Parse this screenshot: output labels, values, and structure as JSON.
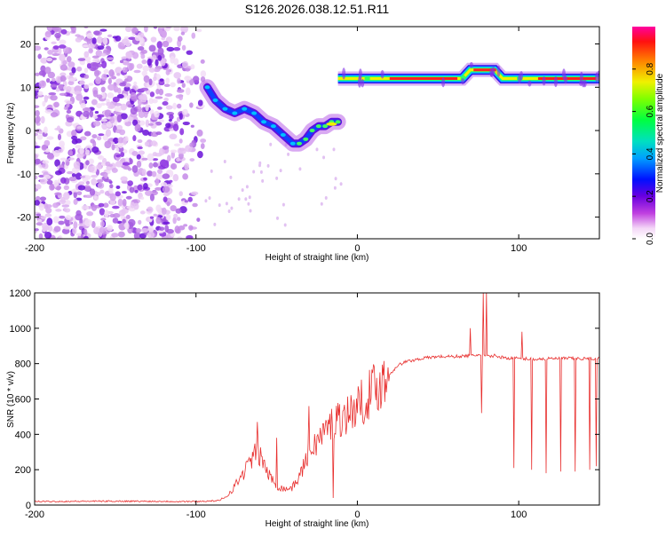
{
  "title": "S126.2026.038.12.51.R11",
  "colors": {
    "line": "#e8302f",
    "axis": "#000000"
  },
  "chart_data": [
    {
      "type": "heatmap",
      "title": "S126.2026.038.12.51.R11",
      "xlabel": "Height of straight line (km)",
      "ylabel": "Frequency (Hz)",
      "xlim": [
        -200,
        150
      ],
      "ylim": [
        -25,
        24
      ],
      "xticks": [
        -200,
        -100,
        0,
        100
      ],
      "yticks": [
        -20,
        -10,
        0,
        10,
        20
      ],
      "noise_region_x": [
        -200,
        -90
      ],
      "track": {
        "x": [
          -93,
          -88,
          -82,
          -76,
          -70,
          -64,
          -58,
          -52,
          -46,
          -40,
          -36,
          -32,
          -28,
          -24,
          -20,
          -16,
          -12
        ],
        "y": [
          10,
          7,
          5,
          4,
          5,
          4,
          2,
          1,
          -1,
          -3,
          -3,
          -2,
          0,
          1,
          1,
          2,
          2
        ]
      },
      "band": {
        "x_start": -12,
        "x_end": 150,
        "y": 12,
        "bump": {
          "x": [
            65,
            70,
            80,
            85,
            90,
            95
          ],
          "y": [
            12,
            14,
            14,
            14,
            12,
            12
          ]
        }
      },
      "colorbar": {
        "label": "Normalized spectral amplitude",
        "ticks": [
          "0.0",
          "0.2",
          "0.4",
          "0.6",
          "0.8"
        ],
        "tick_values": [
          0.0,
          0.2,
          0.4,
          0.6,
          0.8
        ],
        "range": [
          0,
          1
        ]
      }
    },
    {
      "type": "line",
      "xlabel": "Height of straight line (km)",
      "ylabel": "SNR (10 * v/v)",
      "xlim": [
        -200,
        150
      ],
      "ylim": [
        0,
        1200
      ],
      "xticks": [
        -200,
        -100,
        0,
        100
      ],
      "yticks": [
        0,
        200,
        400,
        600,
        800,
        1000,
        1200
      ],
      "series": [
        {
          "name": "SNR",
          "x": [
            -200,
            -150,
            -100,
            -85,
            -80,
            -75,
            -70,
            -65,
            -62,
            -58,
            -55,
            -50,
            -45,
            -40,
            -35,
            -30,
            -25,
            -20,
            -15,
            -10,
            -5,
            0,
            5,
            10,
            15,
            20,
            25,
            30,
            40,
            50,
            60,
            70,
            75,
            80,
            85,
            90,
            95,
            100,
            110,
            120,
            130,
            140,
            150
          ],
          "y": [
            20,
            22,
            20,
            25,
            60,
            120,
            190,
            270,
            300,
            240,
            170,
            110,
            90,
            100,
            180,
            300,
            360,
            420,
            470,
            500,
            520,
            560,
            600,
            660,
            690,
            740,
            790,
            810,
            830,
            840,
            840,
            845,
            850,
            840,
            845,
            835,
            830,
            830,
            825,
            828,
            830,
            828,
            830
          ]
        }
      ],
      "spikes": [
        {
          "x": -62,
          "y": 470
        },
        {
          "x": -50,
          "y": 380
        },
        {
          "x": -30,
          "y": 560
        },
        {
          "x": -15,
          "y": 780
        },
        {
          "x": 70,
          "y": 1000
        },
        {
          "x": 78,
          "y": 1200
        },
        {
          "x": 80,
          "y": 1200
        },
        {
          "x": 102,
          "y": 980
        }
      ],
      "dips": [
        {
          "x": 97,
          "y": 210
        },
        {
          "x": 108,
          "y": 200
        },
        {
          "x": 117,
          "y": 180
        },
        {
          "x": 126,
          "y": 190
        },
        {
          "x": 135,
          "y": 190
        },
        {
          "x": 144,
          "y": 200
        },
        {
          "x": 148,
          "y": 220
        },
        {
          "x": 77,
          "y": 520
        },
        {
          "x": -15,
          "y": 40
        }
      ]
    }
  ]
}
